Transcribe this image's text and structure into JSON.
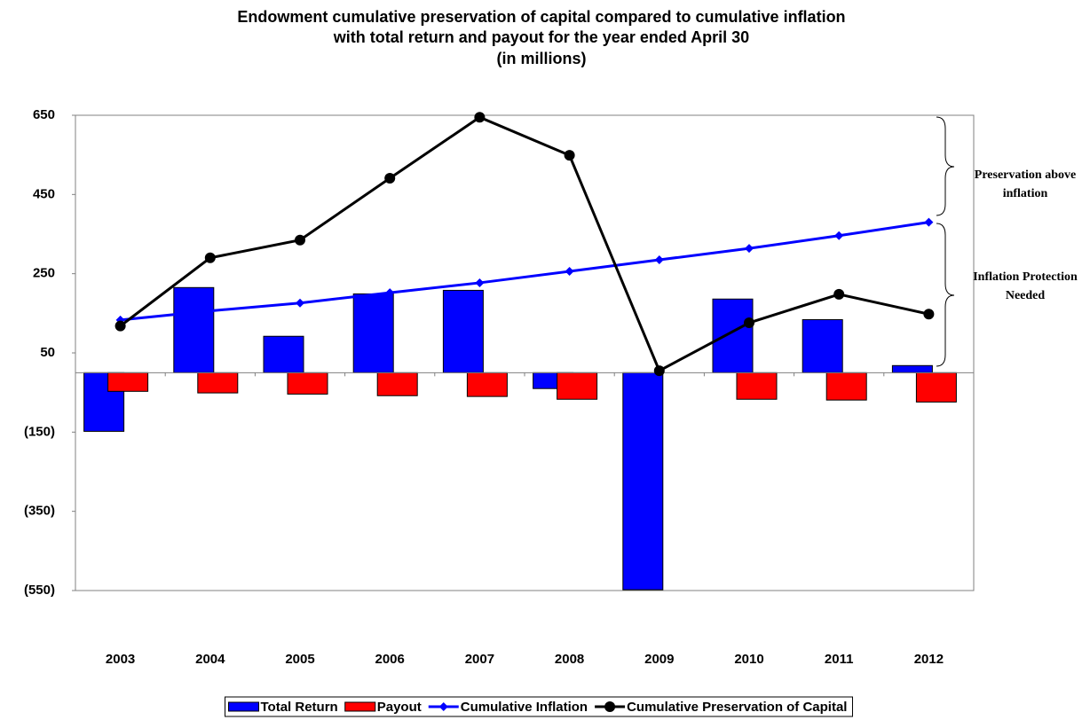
{
  "chart_data": {
    "type": "bar",
    "title": [
      "Endowment cumulative preservation of capital compared to cumulative inflation",
      "with total return and payout for the year ended April 30"
    ],
    "subtitle": "(in millions)",
    "categories": [
      "2003",
      "2004",
      "2005",
      "2006",
      "2007",
      "2008",
      "2009",
      "2010",
      "2011",
      "2012"
    ],
    "series": [
      {
        "name": "Total Return",
        "type": "bar",
        "color": "#0000ff",
        "values": [
          -148,
          215,
          92,
          199,
          208,
          -40,
          -548,
          186,
          134,
          18
        ]
      },
      {
        "name": "Payout",
        "type": "bar",
        "color": "#ff0000",
        "values": [
          -47,
          -51,
          -54,
          -58,
          -60,
          -67,
          null,
          -67,
          -69,
          -74
        ]
      },
      {
        "name": "Cumulative Inflation",
        "type": "line",
        "color": "#0000ff",
        "marker": "diamond",
        "values": [
          133,
          156,
          176,
          202,
          227,
          256,
          285,
          314,
          346,
          380
        ]
      },
      {
        "name": "Cumulative Preservation of Capital",
        "type": "line",
        "color": "#000000",
        "marker": "circle",
        "values": [
          118,
          290,
          335,
          491,
          645,
          549,
          5,
          126,
          198,
          148
        ]
      }
    ],
    "ylim": [
      -550,
      650
    ],
    "yticks": [
      650,
      450,
      250,
      50,
      {
        "value": -150,
        "label": "(150)"
      },
      {
        "value": -350,
        "label": "(350)"
      },
      {
        "value": -550,
        "label": "(550)"
      }
    ],
    "annotations": [
      "Preservation above inflation",
      "Inflation Protection Needed"
    ],
    "legend": "bottom"
  }
}
